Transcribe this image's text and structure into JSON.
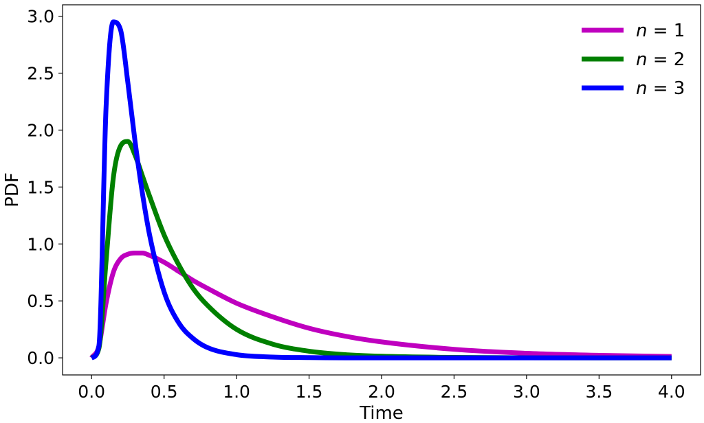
{
  "chart_data": {
    "type": "line",
    "title": "",
    "xlabel": "Time",
    "ylabel": "PDF",
    "xlim": [
      -0.2,
      4.2
    ],
    "ylim": [
      -0.15,
      3.1
    ],
    "xticks": [
      "0.0",
      "0.5",
      "1.0",
      "1.5",
      "2.0",
      "2.5",
      "3.0",
      "3.5",
      "4.0"
    ],
    "yticks": [
      "0.0",
      "0.5",
      "1.0",
      "1.5",
      "2.0",
      "2.5",
      "3.0"
    ],
    "grid": false,
    "legend_position": "top-right",
    "x": [
      0.0,
      0.05,
      0.1,
      0.15,
      0.2,
      0.25,
      0.3,
      0.35,
      0.4,
      0.5,
      0.6,
      0.7,
      0.8,
      1.0,
      1.25,
      1.5,
      1.75,
      2.0,
      2.5,
      3.0,
      3.5,
      4.0
    ],
    "series": [
      {
        "name": "n = 1",
        "label_var": "n",
        "label_value": "1",
        "color": "#bf00bf",
        "values": [
          0.0,
          0.1,
          0.48,
          0.75,
          0.87,
          0.91,
          0.92,
          0.92,
          0.9,
          0.84,
          0.76,
          0.68,
          0.61,
          0.48,
          0.36,
          0.26,
          0.19,
          0.14,
          0.075,
          0.04,
          0.022,
          0.012
        ]
      },
      {
        "name": "n = 2",
        "label_var": "n",
        "label_value": "2",
        "color": "#008000",
        "values": [
          0.0,
          0.08,
          0.85,
          1.58,
          1.86,
          1.9,
          1.78,
          1.6,
          1.42,
          1.08,
          0.82,
          0.61,
          0.46,
          0.25,
          0.12,
          0.058,
          0.028,
          0.014,
          0.004,
          0.001,
          0.0,
          0.0
        ]
      },
      {
        "name": "n = 3",
        "label_var": "n",
        "label_value": "3",
        "color": "#0000ff",
        "values": [
          0.0,
          0.1,
          2.2,
          2.95,
          2.88,
          2.42,
          1.9,
          1.45,
          1.08,
          0.58,
          0.31,
          0.17,
          0.09,
          0.028,
          0.007,
          0.002,
          0.0,
          0.0,
          0.0,
          0.0,
          0.0,
          0.0
        ]
      }
    ]
  }
}
